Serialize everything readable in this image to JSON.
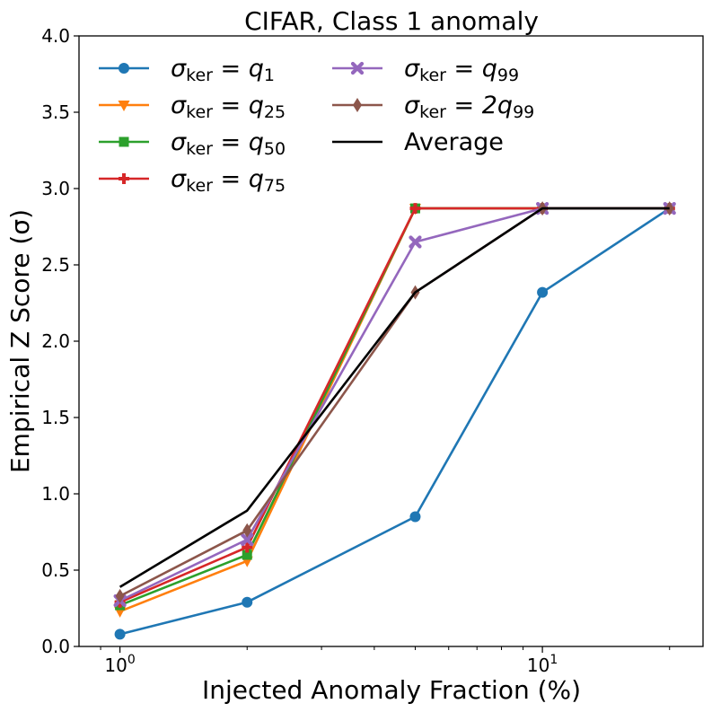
{
  "chart_data": {
    "type": "line",
    "title": "CIFAR, Class 1 anomaly",
    "xlabel": "Injected Anomaly Fraction (%)",
    "ylabel": "Empirical Z Score (σ)",
    "xscale": "log",
    "xlim": [
      0.8,
      24
    ],
    "ylim": [
      0,
      4
    ],
    "x": [
      1,
      2,
      5,
      10,
      20
    ],
    "yticks": [
      "0.0",
      "0.5",
      "1.0",
      "1.5",
      "2.0",
      "2.5",
      "3.0",
      "3.5",
      "4.0"
    ],
    "xticks": [
      {
        "value": 1,
        "base": "10",
        "exp": "0"
      },
      {
        "value": 10,
        "base": "10",
        "exp": "1"
      }
    ],
    "legend_placement": "upper-left",
    "series": [
      {
        "name": "σker = q1",
        "sym": "σ",
        "sub1": "ker",
        "mid": " = ",
        "main": "q",
        "sub2": "1",
        "color": "#1f77b4",
        "marker": "circle",
        "values": [
          0.08,
          0.29,
          0.85,
          2.32,
          2.87
        ]
      },
      {
        "name": "σker = q25",
        "sym": "σ",
        "sub1": "ker",
        "mid": " = ",
        "main": "q",
        "sub2": "25",
        "color": "#ff7f0e",
        "marker": "triangle-down",
        "values": [
          0.23,
          0.56,
          2.87,
          2.87,
          2.87
        ]
      },
      {
        "name": "σker = q50",
        "sym": "σ",
        "sub1": "ker",
        "mid": " = ",
        "main": "q",
        "sub2": "50",
        "color": "#2ca02c",
        "marker": "square",
        "values": [
          0.27,
          0.6,
          2.87,
          2.87,
          2.87
        ]
      },
      {
        "name": "σker = q75",
        "sym": "σ",
        "sub1": "ker",
        "mid": " = ",
        "main": "q",
        "sub2": "75",
        "color": "#d62728",
        "marker": "plus",
        "values": [
          0.29,
          0.65,
          2.87,
          2.87,
          2.87
        ]
      },
      {
        "name": "σker = q99",
        "sym": "σ",
        "sub1": "ker",
        "mid": " = ",
        "main": "q",
        "sub2": "99",
        "color": "#9467bd",
        "marker": "x",
        "values": [
          0.3,
          0.7,
          2.65,
          2.87,
          2.87
        ]
      },
      {
        "name": "σker = 2q99",
        "sym": "σ",
        "sub1": "ker",
        "mid": " = ",
        "main": "2q",
        "sub2": "99",
        "color": "#8c564b",
        "marker": "diamond",
        "values": [
          0.33,
          0.76,
          2.32,
          2.87,
          2.87
        ]
      },
      {
        "name": "Average",
        "color": "#000000",
        "marker": "none",
        "values": [
          0.39,
          0.89,
          2.32,
          2.87,
          2.87
        ]
      }
    ]
  }
}
